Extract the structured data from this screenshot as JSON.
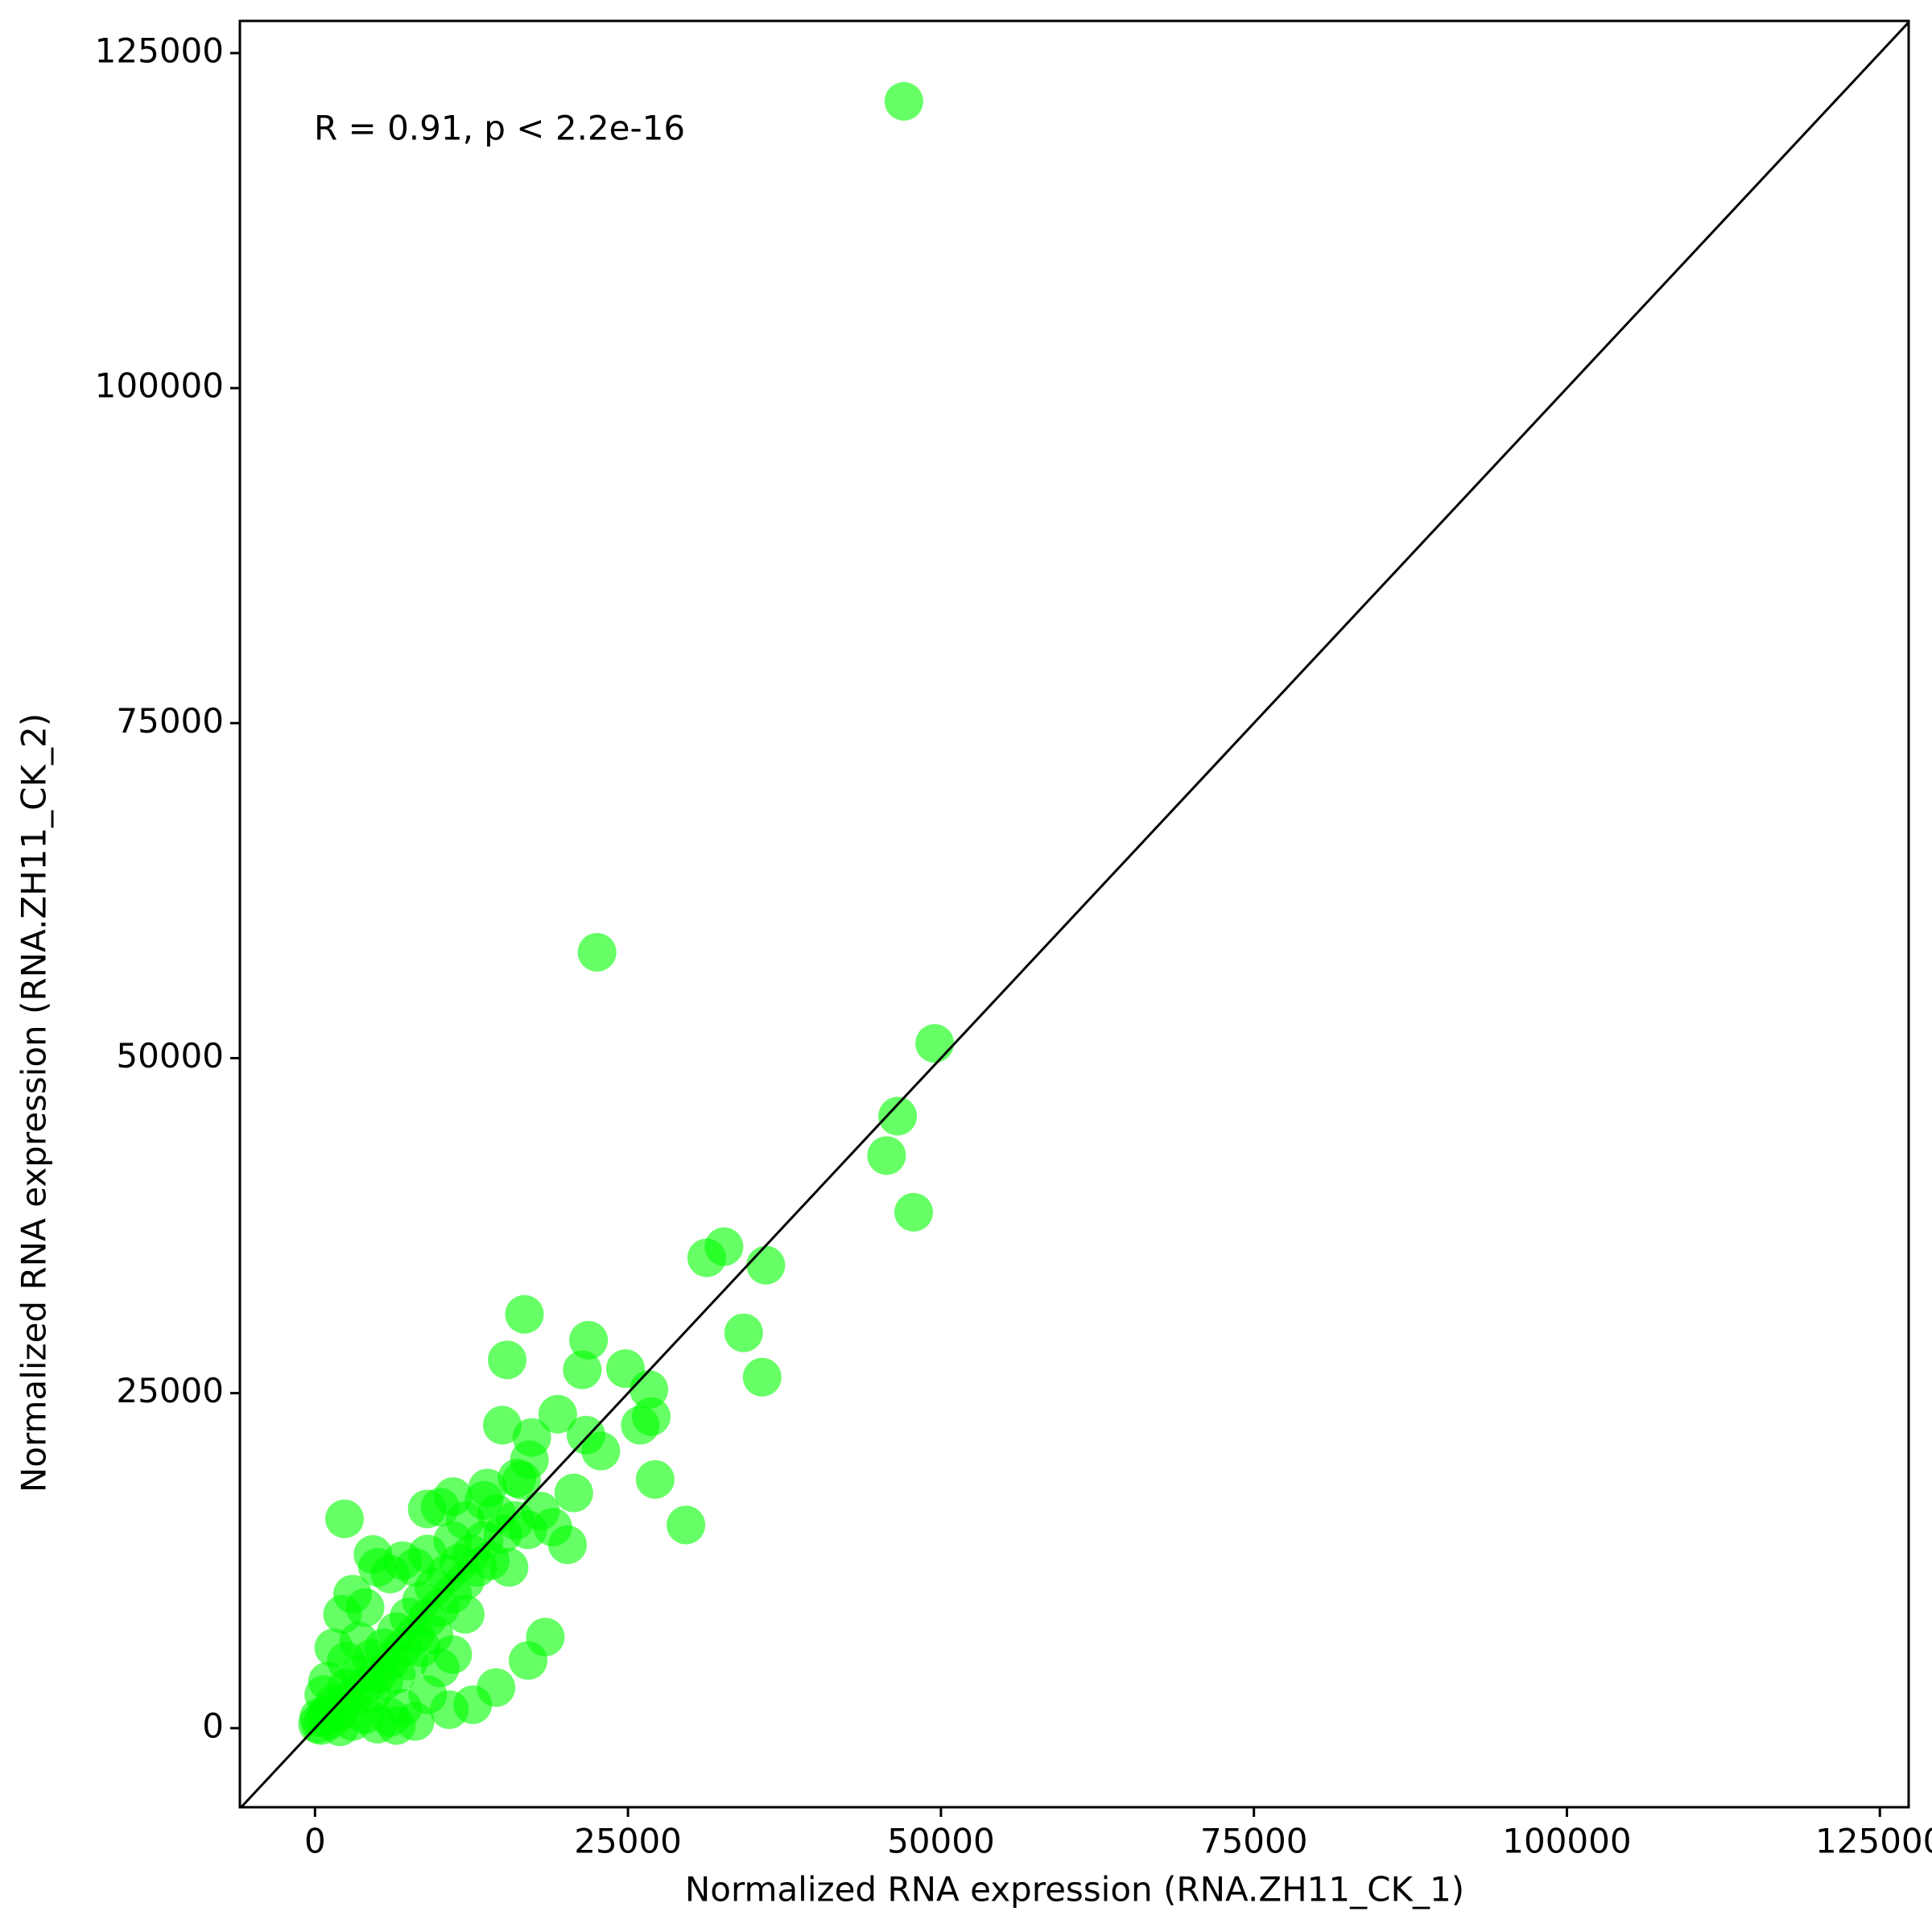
{
  "chart_data": {
    "type": "scatter",
    "annotation": "R = 0.91, p < 2.2e-16",
    "x_label": "Normalized RNA expression (RNA.ZH11_CK_1)",
    "y_label": "Normalized RNA expression (RNA.ZH11_CK_2)",
    "xlim": [
      -6000,
      127300
    ],
    "ylim": [
      -5900,
      127400
    ],
    "xticks": [
      0,
      25000,
      50000,
      75000,
      100000,
      125000
    ],
    "yticks": [
      0,
      25000,
      50000,
      75000,
      100000,
      125000
    ],
    "series": [
      {
        "color": "#00ff00",
        "x": [
          47040,
          22530,
          49500,
          46540,
          45660,
          47820,
          32670,
          31290,
          36010,
          16730,
          34240,
          21850,
          15350,
          24800,
          21350,
          35720,
          26670,
          26860,
          25980,
          19390,
          14960,
          17320,
          21650,
          22830,
          27170,
          29630,
          2360,
          17130,
          16140,
          20670,
          20170,
          11020,
          8960,
          13780,
          4630,
          18400,
          17020,
          14460,
          12600,
          10730,
          200,
          500,
          800,
          1200,
          1500,
          2000,
          2500,
          3000,
          3500,
          4000,
          4500,
          5000,
          5500,
          6000,
          6500,
          7000,
          7500,
          8000,
          8500,
          9000,
          9500,
          10000,
          10500,
          11000,
          11500,
          12000,
          12500,
          13000,
          13500,
          14000,
          1000,
          1500,
          2200,
          3000,
          4000,
          5000,
          6000,
          7000,
          8000,
          9000,
          10000,
          3000,
          4000,
          5000,
          6000,
          7000,
          8000,
          9000,
          10000,
          11000,
          6500,
          2000,
          1000,
          300,
          700,
          2500,
          3500,
          4500,
          5500,
          6500,
          7500,
          8500,
          9500,
          12000,
          15000,
          16000,
          17000,
          18000,
          19000,
          16500,
          15500,
          14500,
          13500,
          11000,
          12000
        ],
        "y": [
          121400,
          57900,
          51100,
          45670,
          42730,
          38500,
          35930,
          35100,
          34550,
          30880,
          29500,
          28950,
          27480,
          26830,
          26740,
          26190,
          25270,
          23250,
          22610,
          23430,
          22610,
          21690,
          21870,
          20680,
          18560,
          15160,
          15620,
          20030,
          18660,
          17550,
          13690,
          17280,
          16360,
          17920,
          12960,
          6800,
          5050,
          3030,
          1750,
          1380,
          300,
          200,
          900,
          600,
          1800,
          1200,
          3000,
          2200,
          4000,
          3100,
          5200,
          4000,
          6000,
          5000,
          7200,
          6000,
          8300,
          7000,
          9500,
          8200,
          10500,
          9000,
          11500,
          10000,
          12300,
          11000,
          13000,
          12000,
          14000,
          12500,
          3500,
          6000,
          8500,
          10000,
          9000,
          12000,
          11500,
          12500,
          12000,
          13000,
          16500,
          500,
          1000,
          300,
          800,
          1500,
          500,
          2500,
          4500,
          5500,
          200,
          100,
          1000,
          800,
          2500,
          5000,
          6500,
          2500,
          3500,
          4000,
          5000,
          6000,
          7000,
          8500,
          14500,
          15500,
          14800,
          16200,
          15000,
          18500,
          12000,
          16000,
          17000,
          14000,
          15500
        ]
      }
    ]
  }
}
